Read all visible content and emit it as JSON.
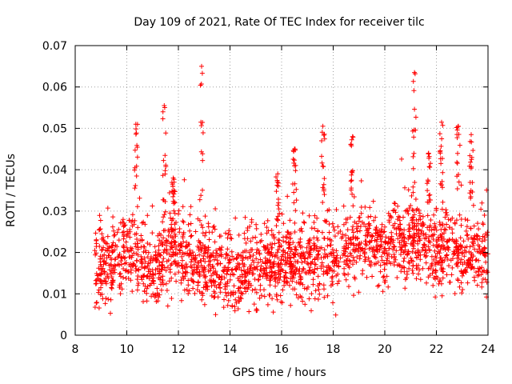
{
  "chart_data": {
    "type": "scatter",
    "title": "Day 109 of 2021, Rate Of TEC Index for receiver tilc",
    "xlabel": "GPS time / hours",
    "ylabel": "ROTI / TECUs",
    "xlim": [
      8,
      24
    ],
    "ylim": [
      0,
      0.07
    ],
    "xticks": [
      8,
      10,
      12,
      14,
      16,
      18,
      20,
      22,
      24
    ],
    "yticks": [
      0,
      0.01,
      0.02,
      0.03,
      0.04,
      0.05,
      0.06,
      0.07
    ],
    "xtick_labels": [
      "8",
      "10",
      "12",
      "14",
      "16",
      "18",
      "20",
      "22",
      "24"
    ],
    "ytick_labels": [
      "0",
      "0.01",
      "0.02",
      "0.03",
      "0.04",
      "0.05",
      "0.06",
      "0.07"
    ],
    "grid": true,
    "marker": "+",
    "color": "#ff0000",
    "point_count": 2200,
    "series": [
      {
        "name": "ROTI",
        "x_range": [
          8.75,
          24.0
        ],
        "baseline_profile": {
          "x": [
            8.75,
            9.5,
            10.0,
            10.5,
            11.0,
            11.5,
            12.0,
            12.5,
            13.0,
            13.5,
            14.0,
            14.5,
            15.0,
            15.5,
            16.0,
            16.5,
            17.0,
            17.5,
            18.0,
            18.5,
            19.0,
            19.5,
            20.0,
            20.5,
            21.0,
            21.5,
            22.0,
            22.5,
            23.0,
            23.5,
            24.0
          ],
          "y": [
            0.016,
            0.017,
            0.021,
            0.018,
            0.016,
            0.019,
            0.02,
            0.019,
            0.017,
            0.016,
            0.014,
            0.016,
            0.016,
            0.017,
            0.017,
            0.018,
            0.017,
            0.018,
            0.018,
            0.021,
            0.023,
            0.022,
            0.021,
            0.023,
            0.023,
            0.022,
            0.021,
            0.02,
            0.018,
            0.02,
            0.02
          ]
        },
        "spikes": [
          {
            "x": 10.35,
            "y_max": 0.051
          },
          {
            "x": 11.45,
            "y_max": 0.0555
          },
          {
            "x": 11.8,
            "y_max": 0.038
          },
          {
            "x": 12.9,
            "y_max": 0.065
          },
          {
            "x": 15.85,
            "y_max": 0.039
          },
          {
            "x": 16.5,
            "y_max": 0.045
          },
          {
            "x": 17.6,
            "y_max": 0.0505
          },
          {
            "x": 18.75,
            "y_max": 0.048
          },
          {
            "x": 21.15,
            "y_max": 0.0635
          },
          {
            "x": 21.7,
            "y_max": 0.044
          },
          {
            "x": 22.2,
            "y_max": 0.0515
          },
          {
            "x": 22.85,
            "y_max": 0.0505
          },
          {
            "x": 23.35,
            "y_max": 0.0485
          }
        ]
      }
    ]
  }
}
